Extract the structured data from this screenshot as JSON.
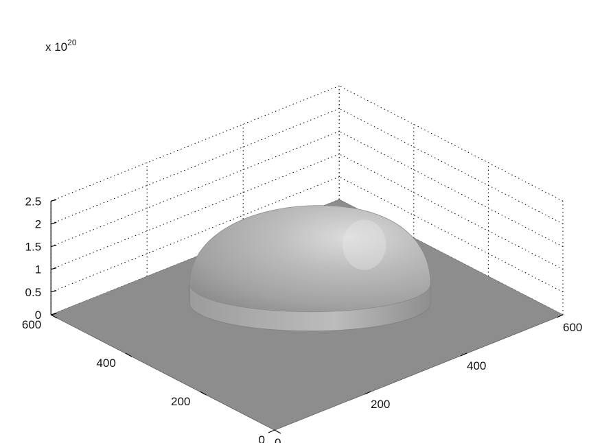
{
  "chart_data": {
    "type": "surface-3d",
    "title": "",
    "xlabel": "",
    "ylabel": "",
    "zlabel": "",
    "z_exponent_label": {
      "base": "x 10",
      "exponent": "20"
    },
    "x_ticks": [
      "0",
      "200",
      "400",
      "600"
    ],
    "y_ticks": [
      "0",
      "200",
      "400",
      "600"
    ],
    "z_ticks": [
      "0",
      "0.5",
      "1",
      "1.5",
      "2",
      "2.5"
    ],
    "xlim": [
      0,
      600
    ],
    "ylim": [
      0,
      600
    ],
    "zlim": [
      0,
      2.5
    ],
    "z_scale": 1e+20,
    "grid": true,
    "surface": {
      "shape": "dome",
      "center": [
        330,
        330
      ],
      "radius": 250,
      "peak": 2.15,
      "base_level": 0,
      "color": "#a8a8a8"
    }
  }
}
